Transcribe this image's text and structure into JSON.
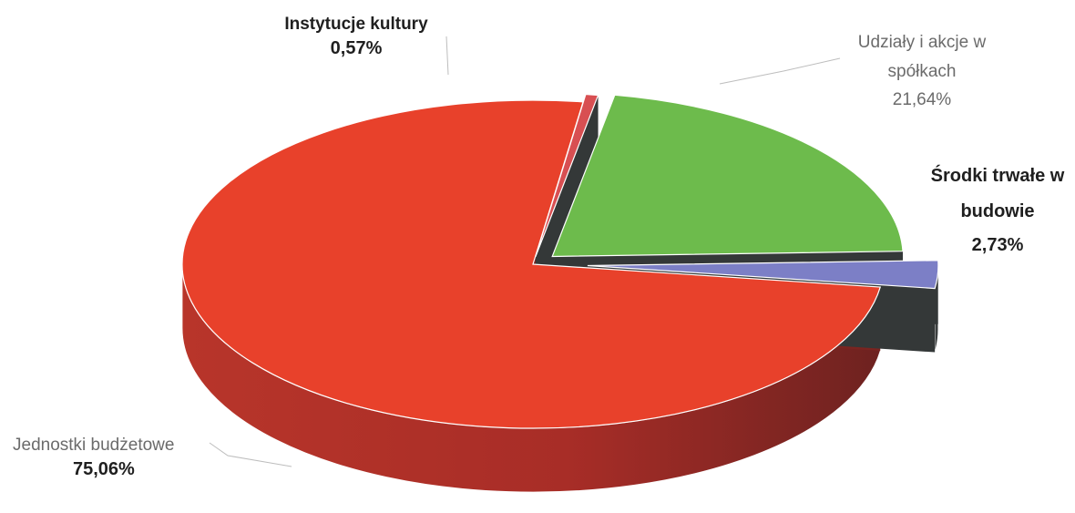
{
  "chart_data": {
    "type": "pie",
    "style": "3d-exploded",
    "legend": "none",
    "slices": [
      {
        "label": "Jednostki budżetowe",
        "value_label": "75,06%",
        "value": 75.06,
        "color": "#e8412b",
        "side_color": "#9e2a22"
      },
      {
        "label": "Instytucje kultury",
        "value_label": "0,57%",
        "value": 0.57,
        "color": "#d84f52",
        "side_color": "#3b3f3f"
      },
      {
        "label": "Udziały i akcje w spółkach",
        "value_label": "21,64%",
        "value": 21.64,
        "color": "#6dbb4c",
        "side_color": "#3b3f3f"
      },
      {
        "label": "Środki trwałe w budowie",
        "value_label": "2,73%",
        "value": 2.73,
        "color": "#7c7fc6",
        "side_color": "#3b3f3f"
      }
    ]
  }
}
